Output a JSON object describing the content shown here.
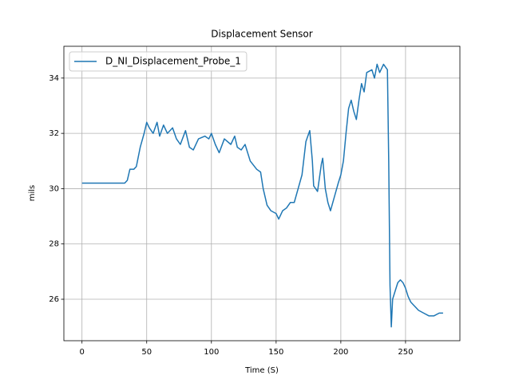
{
  "chart_data": {
    "type": "line",
    "title": "Displacement Sensor",
    "x_label": "Time (S)",
    "y_label": "mils",
    "x": [
      0,
      5,
      10,
      15,
      20,
      25,
      30,
      33,
      35,
      37,
      40,
      42,
      45,
      48,
      50,
      52,
      55,
      58,
      60,
      63,
      66,
      70,
      73,
      76,
      80,
      83,
      86,
      90,
      95,
      98,
      100,
      103,
      106,
      110,
      115,
      118,
      120,
      123,
      126,
      130,
      135,
      138,
      140,
      143,
      146,
      150,
      152,
      155,
      158,
      161,
      164,
      167,
      170,
      173,
      176,
      178,
      179,
      182,
      185,
      186,
      188,
      190,
      192,
      195,
      198,
      200,
      202,
      204,
      206,
      208,
      210,
      212,
      214,
      216,
      218,
      220,
      224,
      226,
      228,
      230,
      233,
      236,
      237,
      238,
      239,
      240,
      242,
      244,
      246,
      248,
      250,
      252,
      254,
      256,
      258,
      260,
      264,
      268,
      272,
      276,
      279
    ],
    "series": [
      {
        "name": "D_NI_Displacement_Probe_1",
        "color": "#1f77b4",
        "values": [
          30.2,
          30.2,
          30.2,
          30.2,
          30.2,
          30.2,
          30.2,
          30.2,
          30.3,
          30.7,
          30.7,
          30.8,
          31.5,
          32.0,
          32.4,
          32.2,
          32.0,
          32.4,
          31.9,
          32.3,
          32.0,
          32.2,
          31.8,
          31.6,
          32.1,
          31.5,
          31.4,
          31.8,
          31.9,
          31.8,
          32.0,
          31.6,
          31.3,
          31.8,
          31.6,
          31.9,
          31.5,
          31.4,
          31.6,
          31.0,
          30.7,
          30.6,
          30.0,
          29.4,
          29.2,
          29.1,
          28.9,
          29.2,
          29.3,
          29.5,
          29.5,
          30.0,
          30.5,
          31.7,
          32.1,
          31.0,
          30.1,
          29.9,
          30.9,
          31.1,
          30.0,
          29.5,
          29.2,
          29.7,
          30.2,
          30.5,
          31.0,
          32.0,
          32.9,
          33.2,
          32.8,
          32.5,
          33.2,
          33.8,
          33.5,
          34.2,
          34.3,
          34.0,
          34.5,
          34.2,
          34.5,
          34.3,
          31.0,
          26.5,
          25.0,
          26.0,
          26.3,
          26.6,
          26.7,
          26.6,
          26.4,
          26.1,
          25.9,
          25.8,
          25.7,
          25.6,
          25.5,
          25.4,
          25.4,
          25.5,
          25.5
        ]
      }
    ],
    "xlim": [
      -14,
      292
    ],
    "ylim": [
      24.5,
      35.15
    ],
    "xticks": [
      0,
      50,
      100,
      150,
      200,
      250
    ],
    "yticks": [
      26,
      28,
      30,
      32,
      34
    ],
    "grid": true,
    "legend": "upper left"
  }
}
